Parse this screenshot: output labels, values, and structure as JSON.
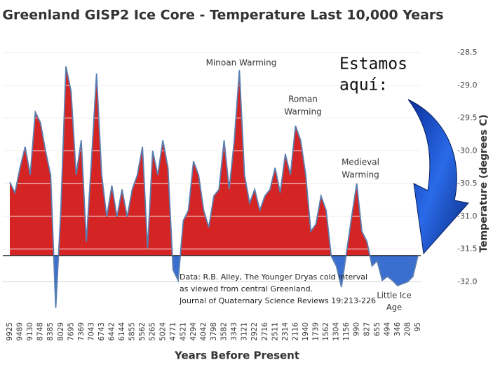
{
  "chart_data": {
    "type": "area",
    "title": "Greenland GISP2 Ice Core - Temperature  Last 10,000 Years",
    "x_label": "Years Before Present",
    "y_label": "Temperature (degrees C)",
    "categories": [
      "9925",
      null,
      "9489",
      null,
      "9130",
      null,
      "8748",
      null,
      "8385",
      null,
      "8029",
      null,
      "7695",
      null,
      "7369",
      null,
      "7043",
      null,
      "6743",
      null,
      "6442",
      null,
      "6144",
      null,
      "5855",
      null,
      "5562",
      null,
      "5265",
      null,
      "5024",
      null,
      "4771",
      null,
      "4521",
      null,
      "4294",
      null,
      "4042",
      null,
      "3798",
      null,
      "3582",
      null,
      "3343",
      null,
      "3121",
      null,
      "2922",
      null,
      "2716",
      null,
      "2511",
      null,
      "2314",
      null,
      "2116",
      null,
      "1940",
      null,
      "1739",
      null,
      "1562",
      null,
      "1304",
      null,
      "1156",
      null,
      "990",
      null,
      "827",
      null,
      "655",
      null,
      "494",
      null,
      "346",
      null,
      "208",
      null,
      "95"
    ],
    "values": [
      -30.48,
      -30.64,
      -30.26,
      -29.94,
      -30.37,
      -29.41,
      -29.57,
      -30.0,
      -30.37,
      -32.4,
      -30.91,
      -28.71,
      -29.09,
      -30.37,
      -29.84,
      -31.39,
      -30.16,
      -28.82,
      -30.37,
      -31.01,
      -30.53,
      -31.01,
      -30.59,
      -31.01,
      -30.59,
      -30.37,
      -29.94,
      -31.49,
      -30.0,
      -30.37,
      -29.84,
      -30.26,
      -31.82,
      -31.98,
      -31.07,
      -30.91,
      -30.16,
      -30.37,
      -30.91,
      -31.17,
      -30.69,
      -30.59,
      -29.84,
      -30.59,
      -29.84,
      -28.77,
      -30.37,
      -30.8,
      -30.59,
      -30.91,
      -30.69,
      -30.59,
      -30.26,
      -30.64,
      -30.05,
      -30.37,
      -29.62,
      -29.84,
      -30.37,
      -31.23,
      -31.12,
      -30.69,
      -30.91,
      -31.61,
      -31.76,
      -32.08,
      -31.55,
      -31.01,
      -30.5,
      -31.23,
      -31.39,
      -31.76,
      -31.68,
      -31.98,
      -31.92,
      -31.98,
      -32.06,
      -32.03,
      -32.0,
      -31.92,
      -31.6
    ],
    "baseline": -31.6,
    "color_above": "#d42424",
    "color_below": "#3a6fd0",
    "line_color": "#5a7fb0",
    "ylim": [
      -32.5,
      -28.5
    ],
    "yticks": [
      -28.5,
      {
        "value": -29,
        "label": "-29.0"
      },
      -29.5,
      {
        "value": -30,
        "label": "-30.0"
      },
      -30.5,
      {
        "value": -31,
        "label": "-31.0"
      },
      -31.5,
      {
        "value": -32,
        "label": "-32.0"
      }
    ],
    "grid": true,
    "annotations": {
      "minoan": [
        "Minoan Warming"
      ],
      "roman": [
        "Roman",
        "Warming"
      ],
      "medieval": [
        "Medieval",
        "Warming"
      ],
      "little_ice_age": [
        "Little Ice",
        "Age"
      ],
      "source": [
        "Data: R.B. Alley,  The Younger Dryas cold interval",
        "as viewed from central Greenland.",
        "Journal of Quaternary  Science Reviews 19:213-226"
      ],
      "here": [
        "Estamos",
        "aquí:"
      ]
    }
  }
}
